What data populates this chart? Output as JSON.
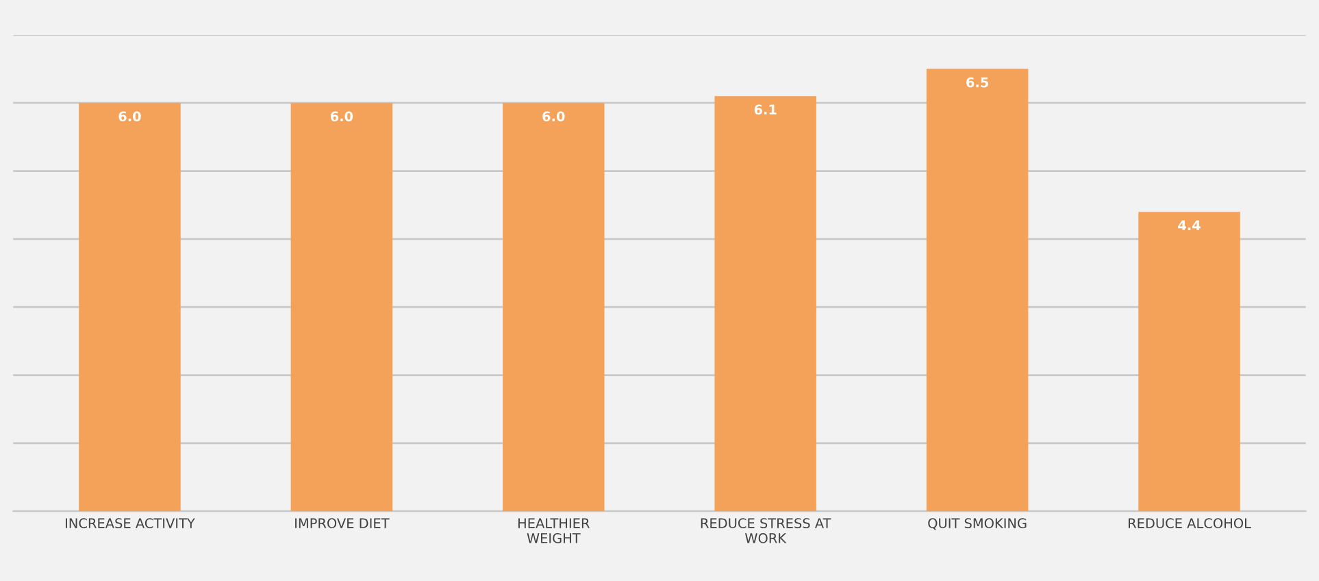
{
  "chart_data": {
    "type": "bar",
    "categories": [
      "INCREASE ACTIVITY",
      "IMPROVE DIET",
      "HEALTHIER\nWEIGHT",
      "REDUCE STRESS AT\nWORK",
      "QUIT SMOKING",
      "REDUCE ALCOHOL"
    ],
    "values": [
      6.0,
      6.0,
      6.0,
      6.1,
      6.5,
      4.4
    ],
    "color": "#f4a25a",
    "value_labels": [
      "6.0",
      "6.0",
      "6.0",
      "6.1",
      "6.5",
      "4.4"
    ],
    "ylim": [
      0,
      7
    ],
    "yticks": [
      {
        "value": 0,
        "label": null
      },
      {
        "value": 1,
        "label": null
      },
      {
        "value": 2,
        "label": null
      },
      {
        "value": 3,
        "label": null
      },
      {
        "value": 4,
        "label": null
      },
      {
        "value": 5,
        "label": null
      },
      {
        "value": 6,
        "label": null
      },
      {
        "value": 7,
        "label": null
      }
    ],
    "tick_labels": "x",
    "grid": "y"
  }
}
